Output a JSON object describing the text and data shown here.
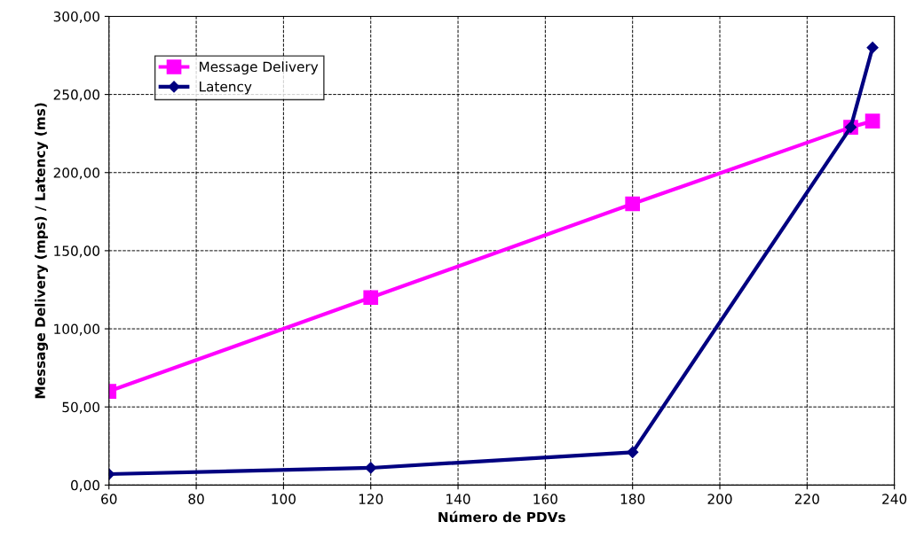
{
  "chart_data": {
    "type": "line",
    "xlabel": "Número de PDVs",
    "ylabel": "Message Delivery (mps) / Latency (ms)",
    "x": [
      60,
      120,
      180,
      230,
      235
    ],
    "series": [
      {
        "name": "Message Delivery",
        "color": "#ff00ff",
        "marker": "square",
        "values": [
          60,
          120,
          180,
          229,
          233
        ]
      },
      {
        "name": "Latency",
        "color": "#000080",
        "marker": "diamond",
        "values": [
          7,
          11,
          21,
          229,
          280
        ]
      }
    ],
    "xlim": [
      60,
      240
    ],
    "xticks": [
      60,
      80,
      100,
      120,
      140,
      160,
      180,
      200,
      220,
      240
    ],
    "ylim": [
      0,
      300
    ],
    "yticks": [
      {
        "value": 0,
        "label": "0,00"
      },
      {
        "value": 50,
        "label": "50,00"
      },
      {
        "value": 100,
        "label": "100,00"
      },
      {
        "value": 150,
        "label": "150,00"
      },
      {
        "value": 200,
        "label": "200,00"
      },
      {
        "value": 250,
        "label": "250,00"
      },
      {
        "value": 300,
        "label": "300,00"
      }
    ],
    "grid": true,
    "legend": "top left",
    "line_style": "solid"
  }
}
